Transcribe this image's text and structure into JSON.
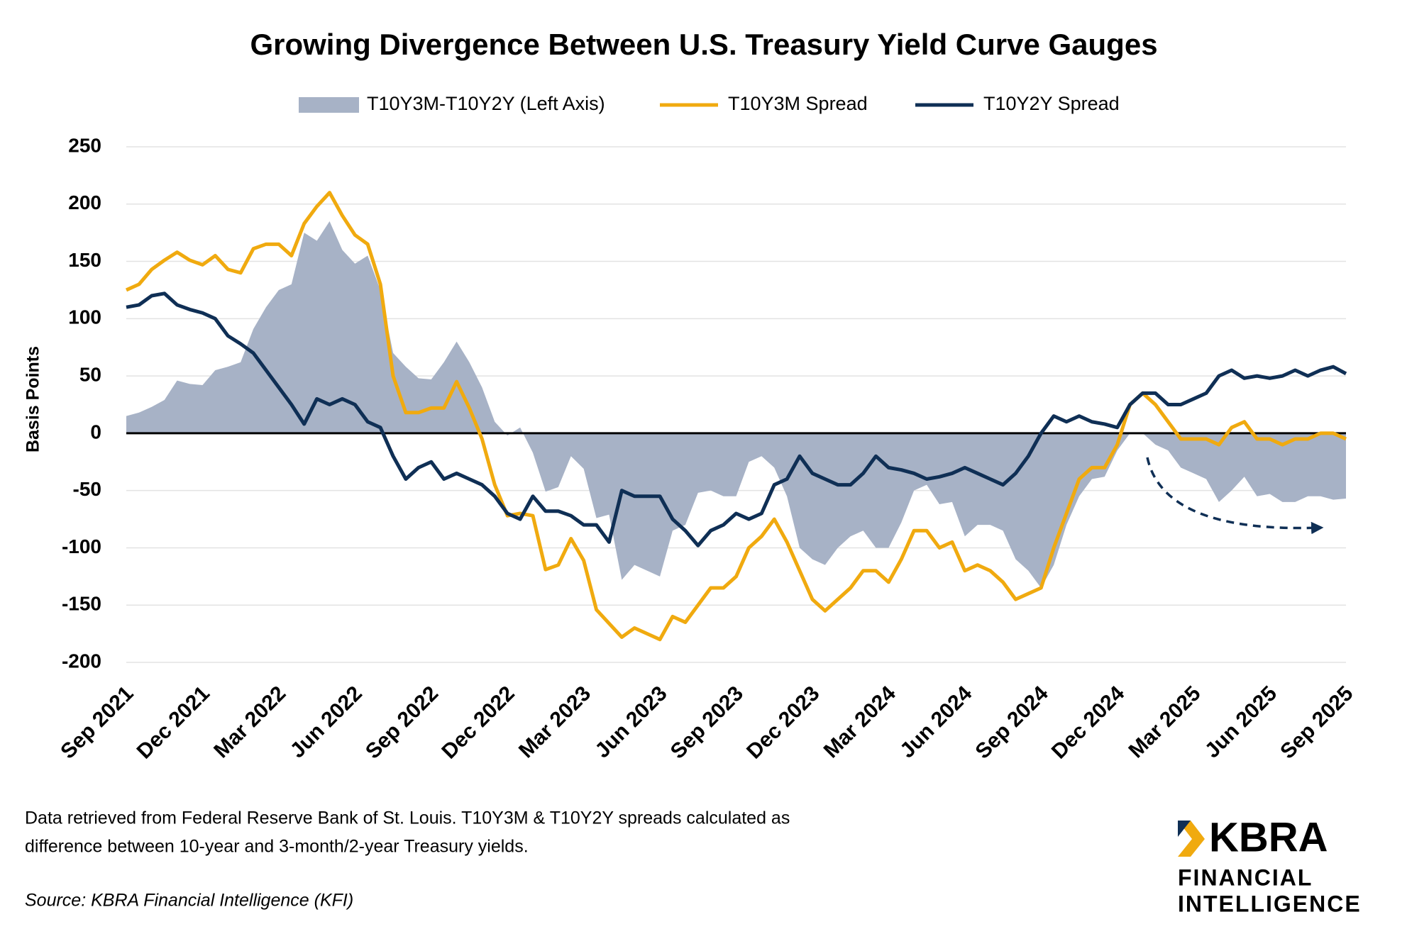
{
  "chart_data": {
    "type": "line",
    "title": "Growing Divergence Between U.S. Treasury Yield Curve Gauges",
    "y_axis_label": "Basis Points",
    "categories": [
      "Sep 2021",
      null,
      null,
      null,
      null,
      null,
      "Dec 2021",
      null,
      null,
      null,
      null,
      null,
      "Mar 2022",
      null,
      null,
      null,
      null,
      null,
      "Jun 2022",
      null,
      null,
      null,
      null,
      null,
      "Sep 2022",
      null,
      null,
      null,
      null,
      null,
      "Dec 2022",
      null,
      null,
      null,
      null,
      null,
      "Mar 2023",
      null,
      null,
      null,
      null,
      null,
      "Jun 2023",
      null,
      null,
      null,
      null,
      null,
      "Sep 2023",
      null,
      null,
      null,
      null,
      null,
      "Dec 2023",
      null,
      null,
      null,
      null,
      null,
      "Mar 2024",
      null,
      null,
      null,
      null,
      null,
      "Jun 2024",
      null,
      null,
      null,
      null,
      null,
      "Sep 2024",
      null,
      null,
      null,
      null,
      null,
      "Dec 2024",
      null,
      null,
      null,
      null,
      null,
      "Mar 2025",
      null,
      null,
      null,
      null,
      null,
      "Jun 2025",
      null,
      null,
      null,
      null,
      null,
      "Sep 2025"
    ],
    "series": [
      {
        "name": "T10Y3M-T10Y2Y (Left Axis)",
        "type": "area",
        "color": "#a7b2c6",
        "values": [
          15,
          18,
          23,
          29,
          46,
          43,
          42,
          55,
          58,
          62,
          91,
          110,
          125,
          130,
          175,
          168,
          185,
          160,
          148,
          155,
          125,
          70,
          58,
          48,
          47,
          62,
          80,
          62,
          40,
          10,
          -2,
          5,
          -17,
          -51,
          -47,
          -20,
          -31,
          -74,
          -71,
          -128,
          -115,
          -120,
          -125,
          -85,
          -80,
          -52,
          -50,
          -55,
          -55,
          -25,
          -20,
          -30,
          -55,
          -100,
          -110,
          -115,
          -100,
          -90,
          -85,
          -100,
          -100,
          -78,
          -50,
          -45,
          -62,
          -60,
          -90,
          -80,
          -80,
          -85,
          -110,
          -120,
          -135,
          -115,
          -80,
          -55,
          -40,
          -38,
          -15,
          0,
          0,
          -10,
          -15,
          -30,
          -35,
          -40,
          -60,
          -50,
          -38,
          -55,
          -53,
          -60,
          -60,
          -55,
          -55,
          -58,
          -57
        ]
      },
      {
        "name": "T10Y3M Spread",
        "type": "line",
        "color": "#f0aa0f",
        "values": [
          125,
          130,
          143,
          151,
          158,
          151,
          147,
          155,
          143,
          140,
          161,
          165,
          165,
          155,
          183,
          198,
          210,
          190,
          173,
          165,
          130,
          50,
          18,
          18,
          22,
          22,
          45,
          22,
          -5,
          -45,
          -72,
          -70,
          -72,
          -119,
          -115,
          -92,
          -111,
          -154,
          -166,
          -178,
          -170,
          -175,
          -180,
          -160,
          -165,
          -150,
          -135,
          -135,
          -125,
          -100,
          -90,
          -75,
          -95,
          -120,
          -145,
          -155,
          -145,
          -135,
          -120,
          -120,
          -130,
          -110,
          -85,
          -85,
          -100,
          -95,
          -120,
          -115,
          -120,
          -130,
          -145,
          -140,
          -135,
          -100,
          -70,
          -40,
          -30,
          -30,
          -10,
          25,
          35,
          25,
          10,
          -5,
          -5,
          -5,
          -10,
          5,
          10,
          -5,
          -5,
          -10,
          -5,
          -5,
          0,
          0,
          -5
        ]
      },
      {
        "name": "T10Y2Y Spread",
        "type": "line",
        "color": "#0f2f55",
        "values": [
          110,
          112,
          120,
          122,
          112,
          108,
          105,
          100,
          85,
          78,
          70,
          55,
          40,
          25,
          8,
          30,
          25,
          30,
          25,
          10,
          5,
          -20,
          -40,
          -30,
          -25,
          -40,
          -35,
          -40,
          -45,
          -55,
          -70,
          -75,
          -55,
          -68,
          -68,
          -72,
          -80,
          -80,
          -95,
          -50,
          -55,
          -55,
          -55,
          -75,
          -85,
          -98,
          -85,
          -80,
          -70,
          -75,
          -70,
          -45,
          -40,
          -20,
          -35,
          -40,
          -45,
          -45,
          -35,
          -20,
          -30,
          -32,
          -35,
          -40,
          -38,
          -35,
          -30,
          -35,
          -40,
          -45,
          -35,
          -20,
          0,
          15,
          10,
          15,
          10,
          8,
          5,
          25,
          35,
          35,
          25,
          25,
          30,
          35,
          50,
          55,
          48,
          50,
          48,
          50,
          55,
          50,
          55,
          58,
          52
        ]
      }
    ],
    "ylim": [
      -200,
      250
    ],
    "yticks": [
      -200,
      -150,
      -100,
      -50,
      0,
      50,
      100,
      150,
      200,
      250
    ],
    "grid": true,
    "legend": "top",
    "note": [
      "Data retrieved from Federal Reserve Bank of St. Louis. T10Y3M & T10Y2Y spreads calculated as",
      "difference between 10-year and 3-month/2-year Treasury yields."
    ],
    "source": "Source: KBRA Financial Intelligence (KFI)"
  },
  "logo": {
    "name": "KBRA",
    "line1": "FINANCIAL",
    "line2": "INTELLIGENCE"
  }
}
